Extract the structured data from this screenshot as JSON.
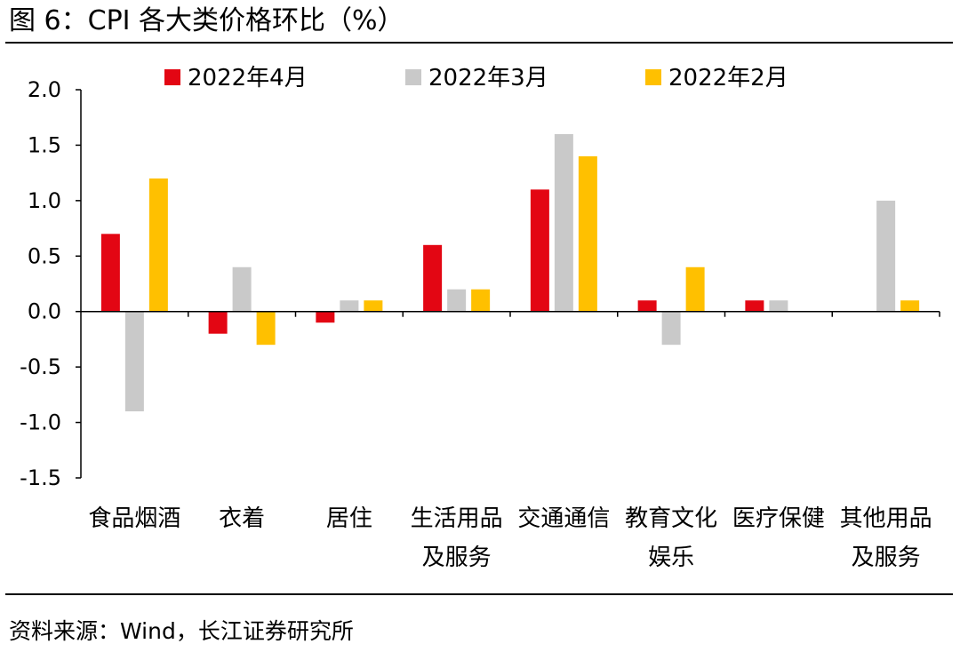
{
  "title": "图 6：CPI 各大类价格环比（%）",
  "source": "资料来源：Wind，长江证券研究所",
  "colors": {
    "2022年4月": "#E30613",
    "2022年3月": "#C9C9C9",
    "2022年2月": "#FFC000"
  },
  "chart_data": {
    "type": "bar",
    "ylabel": "",
    "ylim": [
      -1.5,
      2.0
    ],
    "yticks": [
      "2.0",
      "1.5",
      "1.0",
      "0.5",
      "0.0",
      "-0.5",
      "-1.0",
      "-1.5"
    ],
    "categories": [
      [
        "食品烟酒"
      ],
      [
        "衣着"
      ],
      [
        "居住"
      ],
      [
        "生活用品",
        "及服务"
      ],
      [
        "交通通信"
      ],
      [
        "教育文化",
        "娱乐"
      ],
      [
        "医疗保健"
      ],
      [
        "其他用品",
        "及服务"
      ]
    ],
    "legend_position": "top",
    "series": [
      {
        "name": "2022年4月",
        "values": [
          0.7,
          -0.2,
          -0.1,
          0.6,
          1.1,
          0.1,
          0.1,
          0.0
        ]
      },
      {
        "name": "2022年3月",
        "values": [
          -0.9,
          0.4,
          0.1,
          0.2,
          1.6,
          -0.3,
          0.1,
          1.0
        ]
      },
      {
        "name": "2022年2月",
        "values": [
          1.2,
          -0.3,
          0.1,
          0.2,
          1.4,
          0.4,
          0.0,
          0.1
        ]
      }
    ]
  }
}
